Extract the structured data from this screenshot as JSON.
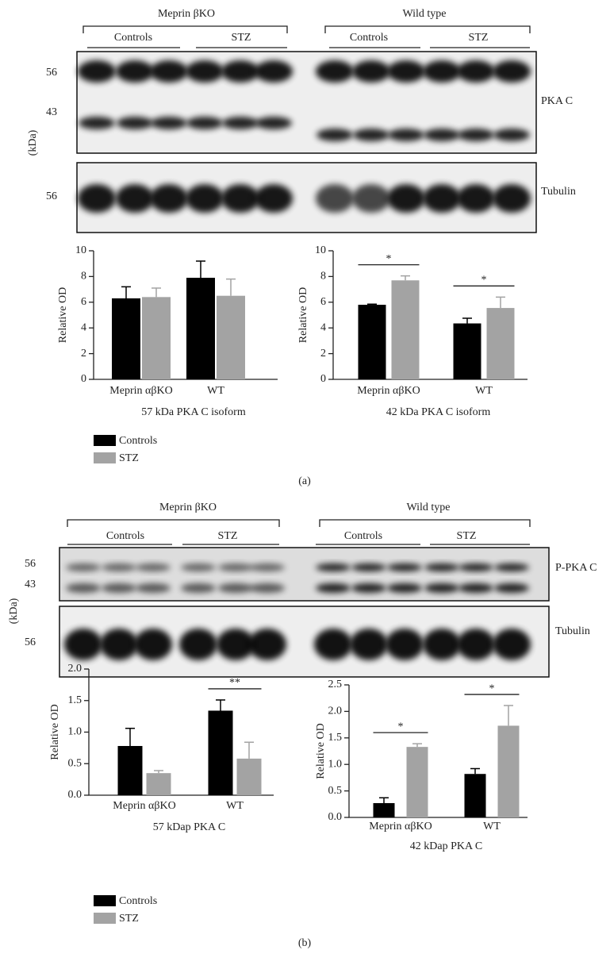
{
  "panels": [
    {
      "label": "(a)",
      "groups": [
        {
          "name": "Meprin βKO",
          "subgroups": [
            "Controls",
            "STZ"
          ]
        },
        {
          "name": "Wild type",
          "subgroups": [
            "Controls",
            "STZ"
          ]
        }
      ],
      "unit": "(kDa)",
      "blots": [
        {
          "name": "PKA C",
          "markers": [
            56,
            43
          ]
        },
        {
          "name": "Tubulin",
          "markers": [
            56
          ]
        }
      ]
    },
    {
      "label": "(b)",
      "groups": [
        {
          "name": "Meprin βKO",
          "subgroups": [
            "Controls",
            "STZ"
          ]
        },
        {
          "name": "Wild type",
          "subgroups": [
            "Controls",
            "STZ"
          ]
        }
      ],
      "unit": "(kDa)",
      "blots": [
        {
          "name": "P-PKA C",
          "markers": [
            56,
            43
          ]
        },
        {
          "name": "Tubulin",
          "markers": [
            56
          ]
        }
      ]
    }
  ],
  "chart_data": [
    {
      "type": "bar",
      "xlabel": "57 kDa PKA C isoform",
      "ylabel": "Relative OD",
      "categories": [
        "Meprin αβKO",
        "WT"
      ],
      "series": [
        {
          "name": "Controls",
          "color": "#000000",
          "values": [
            6.3,
            7.9
          ],
          "errors": [
            0.9,
            1.3
          ]
        },
        {
          "name": "STZ",
          "color": "#a3a3a3",
          "values": [
            6.4,
            6.5
          ],
          "errors": [
            0.7,
            1.3
          ]
        }
      ],
      "ylim": [
        0,
        10
      ],
      "yticks": [
        0,
        2,
        4,
        6,
        8,
        10
      ]
    },
    {
      "type": "bar",
      "xlabel": "42 kDa PKA C isoform",
      "ylabel": "Relative OD",
      "categories": [
        "Meprin αβKO",
        "WT"
      ],
      "series": [
        {
          "color": "#000000",
          "values": [
            5.8,
            4.35
          ],
          "errors": [
            0.05,
            0.4
          ]
        },
        {
          "color": "#a3a3a3",
          "values": [
            7.7,
            5.55
          ],
          "errors": [
            0.35,
            0.85
          ]
        }
      ],
      "significance": [
        "*",
        "*"
      ],
      "ylim": [
        0,
        10
      ],
      "yticks": [
        0,
        2,
        4,
        6,
        8,
        10
      ]
    },
    {
      "type": "bar",
      "xlabel": "57 kDap PKA C",
      "ylabel": "Relative OD",
      "categories": [
        "Meprin αβKO",
        "WT"
      ],
      "series": [
        {
          "name": "Controls",
          "color": "#000000",
          "values": [
            0.78,
            1.34
          ],
          "errors": [
            0.28,
            0.17
          ]
        },
        {
          "name": "STZ",
          "color": "#a3a3a3",
          "values": [
            0.35,
            0.58
          ],
          "errors": [
            0.04,
            0.26
          ]
        }
      ],
      "significance": [
        null,
        "**"
      ],
      "ylim": [
        0,
        2
      ],
      "yticks": [
        {
          "value": 0,
          "label": "0.0"
        },
        0.5,
        {
          "value": 1,
          "label": "1.0"
        },
        1.5,
        {
          "value": 2,
          "label": "2.0"
        }
      ]
    },
    {
      "type": "bar",
      "xlabel": "42 kDap PKA C",
      "ylabel": "Relative OD",
      "categories": [
        "Meprin αβKO",
        "WT"
      ],
      "series": [
        {
          "color": "#000000",
          "values": [
            0.27,
            0.82
          ],
          "errors": [
            0.1,
            0.1
          ]
        },
        {
          "color": "#a3a3a3",
          "values": [
            1.33,
            1.73
          ],
          "errors": [
            0.06,
            0.38
          ]
        }
      ],
      "significance": [
        "*",
        "*"
      ],
      "ylim": [
        0,
        2.5
      ],
      "yticks": [
        {
          "value": 0,
          "label": "0.0"
        },
        0.5,
        {
          "value": 1,
          "label": "1.0"
        },
        1.5,
        {
          "value": 2,
          "label": "2.0"
        },
        2.5
      ]
    }
  ]
}
